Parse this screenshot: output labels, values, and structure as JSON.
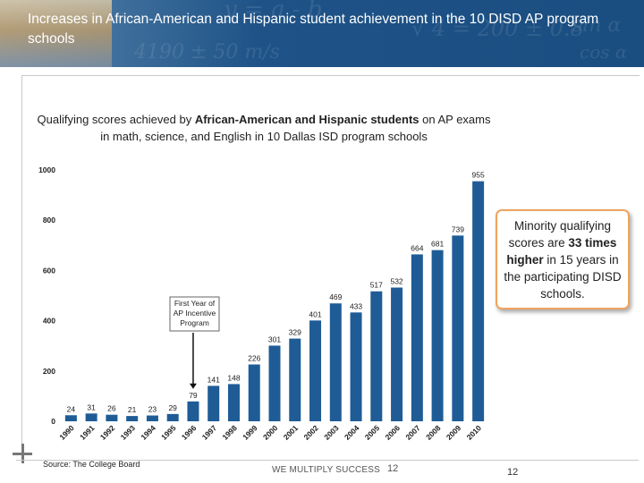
{
  "slide": {
    "title": "Increases in African-American and Hispanic student achievement in the 10 DISD AP program schools",
    "subtitle_part1": "Qualifying scores achieved by",
    "subtitle_bold": "African-American and Hispanic students",
    "subtitle_part2": "on AP exams in math, science, and English in 10 Dallas ISD program schools",
    "callout_pre": "Minority qualifying scores are",
    "callout_bold": "33 times higher",
    "callout_post": "in 15 years in the participating DISD schools.",
    "source": "Source:  The College Board",
    "tagline": "WE MULTIPLY SUCCESS",
    "page_number_left": "12",
    "page_number_right": "12",
    "header_deco": [
      "y = a - b",
      "√ 4 = 200 ± 0.8",
      "sin α",
      "cos α",
      "4190 ± 50 m/s"
    ]
  },
  "chart_data": {
    "type": "bar",
    "categories": [
      "1990",
      "1991",
      "1992",
      "1993",
      "1994",
      "1995",
      "1996",
      "1997",
      "1998",
      "1999",
      "2000",
      "2001",
      "2002",
      "2003",
      "2004",
      "2005",
      "2006",
      "2007",
      "2008",
      "2009",
      "2010"
    ],
    "values": [
      24,
      31,
      26,
      21,
      23,
      29,
      79,
      141,
      148,
      226,
      301,
      329,
      401,
      469,
      433,
      517,
      532,
      664,
      681,
      739,
      955
    ],
    "ylim": [
      0,
      1000
    ],
    "yticks": [
      0,
      200,
      400,
      600,
      800,
      1000
    ],
    "annotation": {
      "label_lines": [
        "First Year of",
        "AP Incentive",
        "Program"
      ],
      "category": "1996"
    },
    "colors": {
      "bar": "#1f5c96",
      "label": "#222222"
    }
  }
}
